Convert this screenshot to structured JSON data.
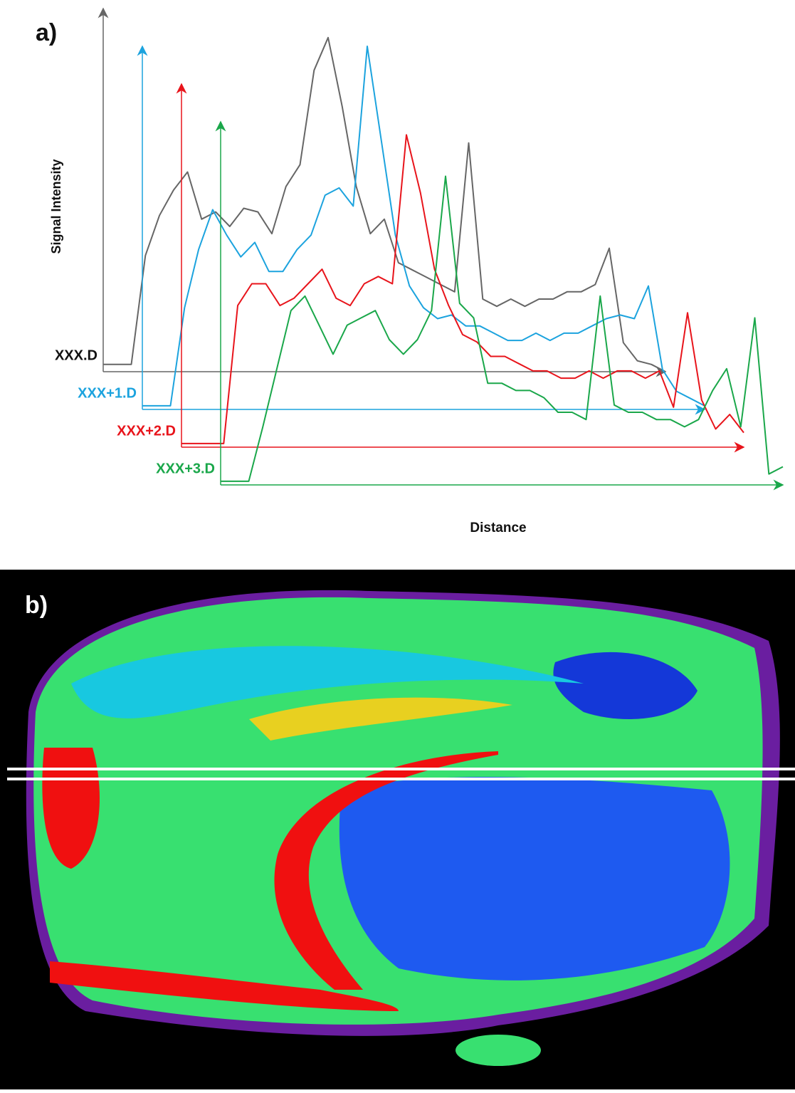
{
  "chart_data": {
    "type": "line",
    "panel_label": "a)",
    "ylabel": "Signal Intensity",
    "xlabel": "Distance",
    "x": [
      0,
      2,
      4,
      6,
      8,
      10,
      12,
      14,
      16,
      18,
      20,
      22,
      24,
      26,
      28,
      30,
      32,
      34,
      36,
      38,
      40,
      42,
      44,
      46,
      48,
      50,
      52,
      54,
      56,
      58,
      60,
      62,
      64,
      66,
      68,
      70,
      72,
      74,
      76,
      78,
      80
    ],
    "xlim": [
      0,
      80
    ],
    "ylim": [
      0,
      100
    ],
    "series": [
      {
        "name": "XXX.D",
        "color": "#666666",
        "values": [
          2,
          2,
          2,
          32,
          43,
          50,
          55,
          42,
          44,
          40,
          45,
          44,
          38,
          51,
          57,
          83,
          92,
          73,
          51,
          38,
          42,
          30,
          28,
          26,
          24,
          22,
          63,
          20,
          18,
          20,
          18,
          20,
          20,
          22,
          22,
          24,
          34,
          8,
          3,
          2,
          0
        ]
      },
      {
        "name": "XXX+1.D",
        "color": "#1ca3de",
        "values": [
          1,
          1,
          1,
          28,
          44,
          55,
          48,
          42,
          46,
          38,
          38,
          44,
          48,
          59,
          61,
          56,
          100,
          74,
          48,
          34,
          28,
          25,
          26,
          23,
          23,
          21,
          19,
          19,
          21,
          19,
          21,
          21,
          23,
          25,
          26,
          25,
          34,
          11,
          5,
          3,
          1
        ]
      },
      {
        "name": "XXX+2.D",
        "color": "#e8141b",
        "values": [
          1,
          1,
          1,
          1,
          39,
          45,
          45,
          39,
          41,
          45,
          49,
          41,
          39,
          45,
          47,
          45,
          86,
          70,
          49,
          39,
          31,
          29,
          25,
          25,
          23,
          21,
          21,
          19,
          19,
          21,
          19,
          21,
          21,
          19,
          21,
          11,
          37,
          13,
          5,
          9,
          4
        ]
      },
      {
        "name": "XXX+3.D",
        "color": "#1aa74a",
        "values": [
          1,
          1,
          1,
          16,
          32,
          48,
          52,
          44,
          36,
          44,
          46,
          48,
          40,
          36,
          40,
          48,
          85,
          50,
          46,
          28,
          28,
          26,
          26,
          24,
          20,
          20,
          18,
          52,
          22,
          20,
          20,
          18,
          18,
          16,
          18,
          26,
          32,
          16,
          46,
          3,
          5
        ]
      }
    ]
  },
  "image": {
    "label": "b)"
  }
}
